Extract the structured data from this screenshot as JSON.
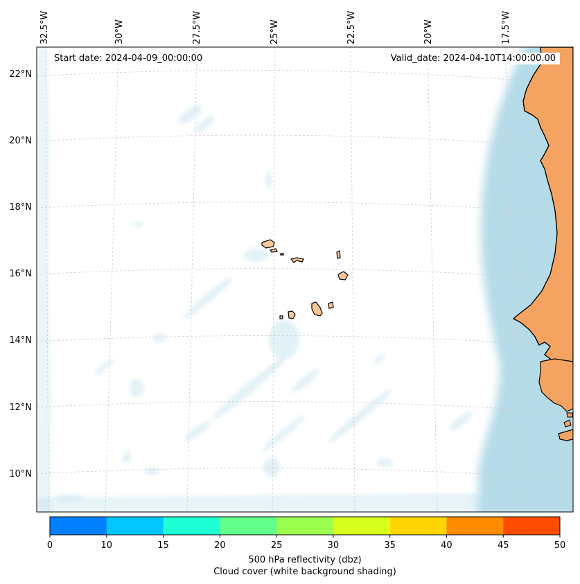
{
  "header": {
    "start_date": "Start date: 2024-04-09_00:00:00",
    "valid_date": "Valid_date: 2024-04-10T14:00:00.00"
  },
  "axes": {
    "lon_labels": [
      "32.5°W",
      "30°W",
      "27.5°W",
      "25°W",
      "22.5°W",
      "20°W",
      "17.5°W"
    ],
    "lat_labels": [
      "22°N",
      "20°N",
      "18°N",
      "16°N",
      "14°N",
      "12°N",
      "10°N"
    ]
  },
  "colorbar": {
    "ticks": [
      "0",
      "10",
      "15",
      "20",
      "25",
      "30",
      "35",
      "40",
      "45",
      "50"
    ],
    "colors": [
      "#0080ff",
      "#00c8ff",
      "#1effd6",
      "#62ff8a",
      "#9cff50",
      "#d8ff1e",
      "#ffd600",
      "#ff8c00",
      "#ff4d00"
    ],
    "label_line1": "500 hPa reflectivity (dbz)",
    "label_line2": "Cloud cover (white background shading)"
  },
  "map_colors": {
    "land": "#f4a460",
    "island": "#f9c79b",
    "cloud": "#add8e6"
  }
}
